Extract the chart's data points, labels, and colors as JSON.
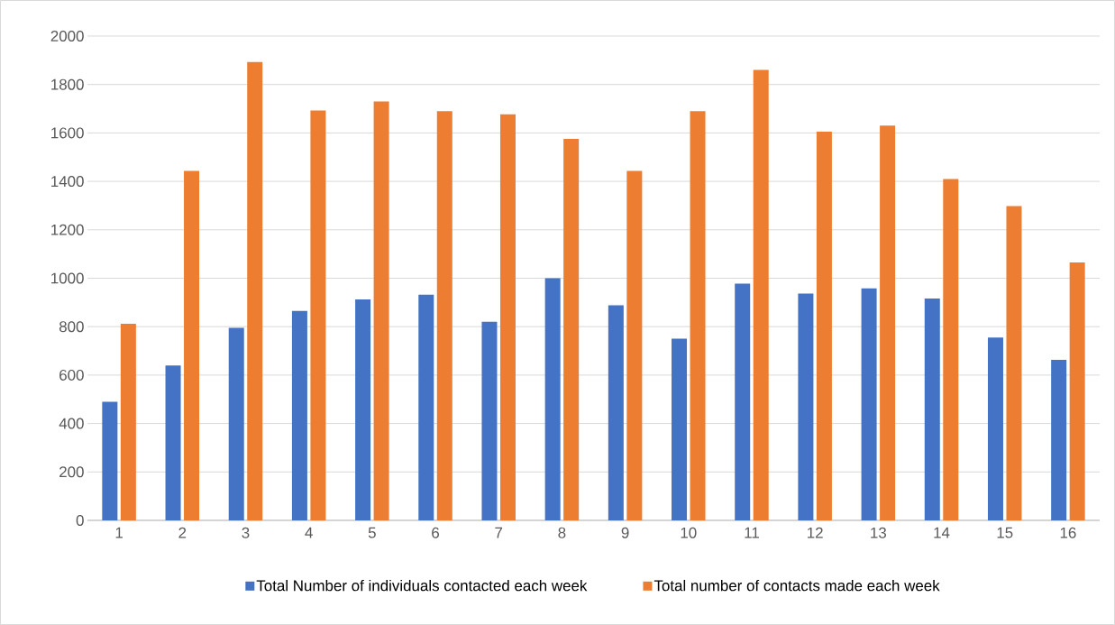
{
  "chart_data": {
    "type": "bar",
    "categories": [
      "1",
      "2",
      "3",
      "4",
      "5",
      "6",
      "7",
      "8",
      "9",
      "10",
      "11",
      "12",
      "13",
      "14",
      "15",
      "16"
    ],
    "series": [
      {
        "name": "Total Number of individuals contacted each week",
        "color": "#4472c4",
        "values": [
          490,
          640,
          795,
          865,
          912,
          932,
          820,
          1000,
          888,
          750,
          978,
          937,
          958,
          916,
          755,
          663
        ]
      },
      {
        "name": "Total number of contacts made each week",
        "color": "#ed7d31",
        "values": [
          812,
          1443,
          1893,
          1693,
          1730,
          1690,
          1677,
          1575,
          1443,
          1690,
          1860,
          1605,
          1630,
          1410,
          1298,
          1065
        ]
      }
    ],
    "ylim": [
      0,
      2000
    ],
    "yticks": [
      0,
      200,
      400,
      600,
      800,
      1000,
      1200,
      1400,
      1600,
      1800,
      2000
    ],
    "grid": "y",
    "legend": "bottom"
  }
}
